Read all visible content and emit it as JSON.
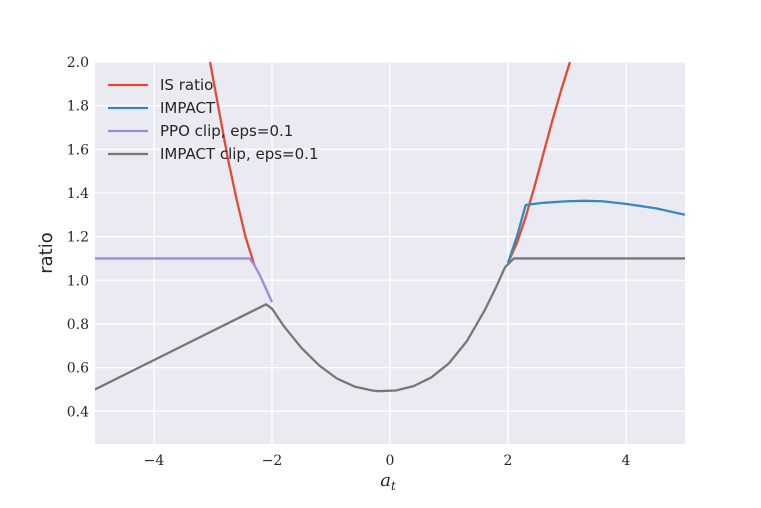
{
  "chart_data": {
    "type": "line",
    "title": "",
    "xlabel": "a",
    "xlabel_sub": "t",
    "ylabel": "ratio",
    "xlim": [
      -5,
      5
    ],
    "ylim": [
      0.25,
      2.0
    ],
    "grid": true,
    "legend_placement": "top-left",
    "xticks": [
      -4,
      -2,
      0,
      2,
      4
    ],
    "xtick_labels": [
      "−4",
      "−2",
      "0",
      "2",
      "4"
    ],
    "yticks": [
      0.4,
      0.6,
      0.8,
      1.0,
      1.2,
      1.4,
      1.6,
      1.8,
      2.0
    ],
    "ytick_labels": [
      "0.4",
      "0.6",
      "0.8",
      "1.0",
      "1.2",
      "1.4",
      "1.6",
      "1.8",
      "2.0"
    ],
    "series": [
      {
        "name": "IS ratio",
        "color": "#e24a33",
        "x": [
          -3.05,
          -2.9,
          -2.75,
          -2.6,
          -2.45,
          -2.3
        ],
        "y": [
          2.0,
          1.78,
          1.56,
          1.37,
          1.2,
          1.07
        ],
        "x2": [
          2.0,
          2.15,
          2.3,
          2.45,
          2.6,
          2.75,
          2.9,
          3.05
        ],
        "y2": [
          1.08,
          1.17,
          1.29,
          1.43,
          1.58,
          1.73,
          1.87,
          2.0
        ]
      },
      {
        "name": "IMPACT",
        "color": "#348abd",
        "x": [
          2.0,
          2.15,
          2.3,
          2.6,
          3.0,
          3.3,
          3.6,
          4.0,
          4.5,
          5.0
        ],
        "y": [
          1.08,
          1.2,
          1.345,
          1.355,
          1.362,
          1.364,
          1.362,
          1.35,
          1.33,
          1.3
        ]
      },
      {
        "name": "PPO clip, eps=0.1",
        "color": "#988ed5",
        "x": [
          -5.0,
          -2.38,
          -2.3,
          -2.2,
          -2.1,
          -2.0
        ],
        "y": [
          1.1,
          1.1,
          1.07,
          1.02,
          0.96,
          0.9
        ]
      },
      {
        "name": "IMPACT clip, eps=0.1",
        "color": "#777777",
        "x": [
          -5.0,
          -2.1,
          -2.0,
          -1.8,
          -1.5,
          -1.2,
          -0.9,
          -0.6,
          -0.3,
          -0.2,
          0.1,
          0.4,
          0.7,
          1.0,
          1.3,
          1.6,
          1.8,
          1.95,
          2.1,
          5.0
        ],
        "y": [
          0.5,
          0.89,
          0.87,
          0.79,
          0.69,
          0.61,
          0.55,
          0.513,
          0.495,
          0.492,
          0.495,
          0.515,
          0.555,
          0.62,
          0.72,
          0.86,
          0.97,
          1.06,
          1.1,
          1.1
        ]
      }
    ]
  }
}
